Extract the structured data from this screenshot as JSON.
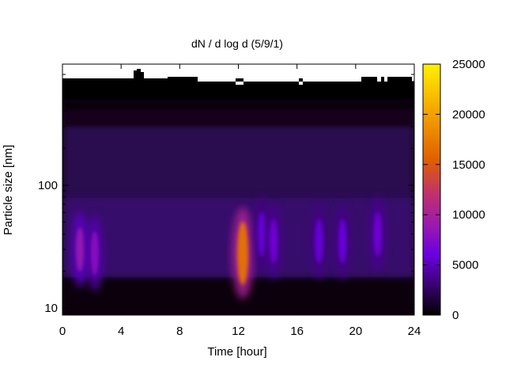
{
  "chart_data": {
    "type": "heatmap",
    "title": "dN / d log d (5/9/1)",
    "xlabel": "Time [hour]",
    "ylabel": "Particle size [nm]",
    "xlim": [
      0,
      24
    ],
    "ylim": [
      9,
      900
    ],
    "y_scale": "log",
    "x_ticks": [
      "0",
      "4",
      "8",
      "12",
      "16",
      "20",
      "24"
    ],
    "y_ticks": [
      "10",
      "100"
    ],
    "colorbar": {
      "range": [
        0,
        25000
      ],
      "ticks": [
        "0",
        "5000",
        "10000",
        "15000",
        "20000",
        "25000"
      ],
      "palette": [
        "#000000",
        "#3a0070",
        "#6a00e0",
        "#9a1ab0",
        "#c03070",
        "#e06000",
        "#f4a000",
        "#fff000"
      ]
    },
    "grid": false,
    "concentration_peaks": [
      {
        "time": 1.2,
        "diameter": 30,
        "value": 9000
      },
      {
        "time": 2.2,
        "diameter": 28,
        "value": 8000
      },
      {
        "time": 12.3,
        "diameter": 28,
        "value": 17000
      },
      {
        "time": 13.6,
        "diameter": 40,
        "value": 6000
      },
      {
        "time": 14.4,
        "diameter": 35,
        "value": 6500
      },
      {
        "time": 17.5,
        "diameter": 35,
        "value": 6000
      },
      {
        "time": 19.1,
        "diameter": 35,
        "value": 6000
      },
      {
        "time": 21.5,
        "diameter": 40,
        "value": 6500
      }
    ]
  }
}
